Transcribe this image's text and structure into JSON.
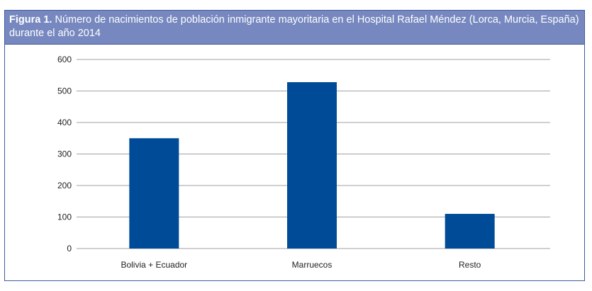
{
  "chart_data": {
    "type": "bar",
    "title_prefix": "Figura 1.",
    "title": "Número de nacimientos de población inmigrante mayoritaria en el Hospital Rafael Méndez (Lorca, Murcia, España) durante el año 2014",
    "categories": [
      "Bolivia + Ecuador",
      "Marruecos",
      "Resto"
    ],
    "values": [
      350,
      528,
      110
    ],
    "ylim": [
      0,
      600
    ],
    "yticks": [
      0,
      100,
      200,
      300,
      400,
      500,
      600
    ],
    "grid": true,
    "bar_color": "#004b97",
    "header_color": "#7688bf"
  }
}
